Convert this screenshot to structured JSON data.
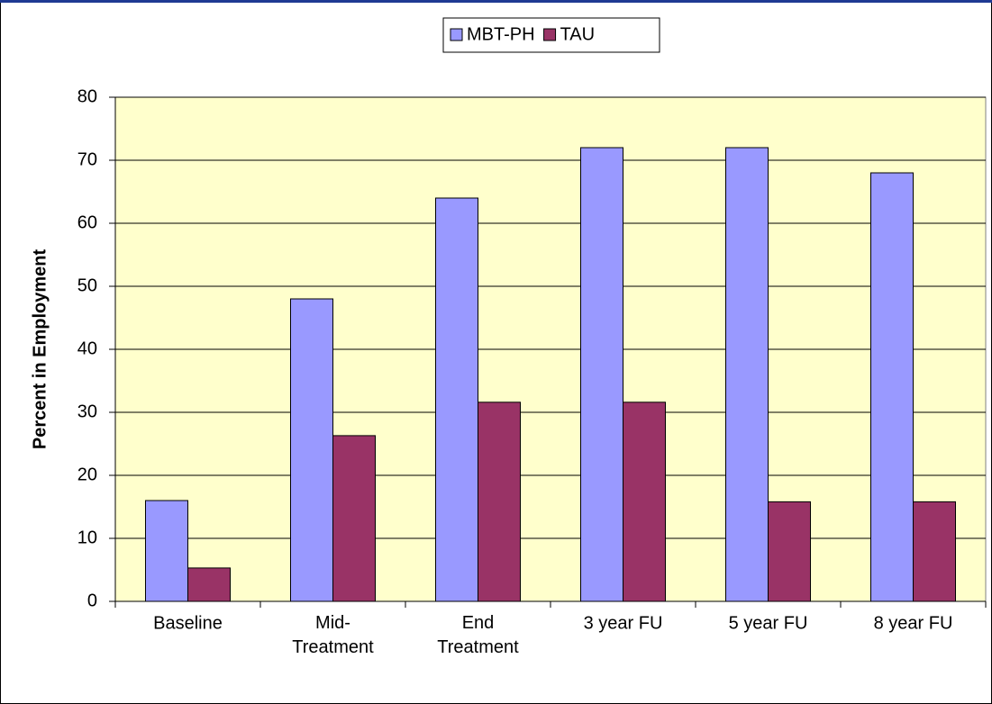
{
  "chart_data": {
    "type": "bar",
    "categories": [
      "Baseline",
      "Mid-\nTreatment",
      "End\nTreatment",
      "3 year FU",
      "5 year FU",
      "8 year FU"
    ],
    "series": [
      {
        "name": "MBT-PH",
        "color": "#9999ff",
        "values": [
          16,
          48,
          64,
          72,
          72,
          68
        ]
      },
      {
        "name": "TAU",
        "color": "#993366",
        "values": [
          5.3,
          26.3,
          31.6,
          31.6,
          15.8,
          15.8
        ]
      }
    ],
    "ylabel": "Percent in Employment",
    "ylim": [
      0,
      80
    ],
    "yticks": [
      0,
      10,
      20,
      30,
      40,
      50,
      60,
      70,
      80
    ],
    "grid": true,
    "legend": "top",
    "plot_background": "#ffffcc"
  }
}
